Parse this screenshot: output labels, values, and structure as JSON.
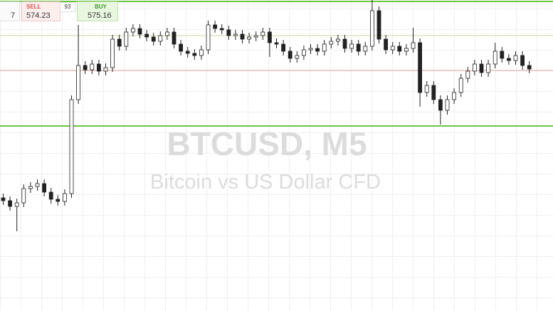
{
  "chart_data": {
    "type": "candlestick",
    "title": "BTCUSD, M5",
    "subtitle": "Bitcoin vs US Dollar CFD",
    "ylim": [
      560.52,
      578
    ],
    "up_color": "#ffffff",
    "down_color": "#222222",
    "edge_color": "#222222",
    "levels": [
      {
        "value": 577.92,
        "color": "#6cc644"
      },
      {
        "value": 576.0,
        "color": "#c9d79c"
      },
      {
        "value": 574.04,
        "color": "#e3a3a3"
      },
      {
        "value": 570.92,
        "color": "#6cc644"
      }
    ],
    "open": [
      566.88,
      566.72,
      566.4,
      566.6,
      567.4,
      567.52,
      567.68,
      567.2,
      566.8,
      566.68,
      567.12,
      572.4,
      574.32,
      574.08,
      574.4,
      574.0,
      574.2,
      575.8,
      575.4,
      576.2,
      576.4,
      576.08,
      575.92,
      575.68,
      576.0,
      576.2,
      575.52,
      575.12,
      575.0,
      574.88,
      575.2,
      576.6,
      576.4,
      576.32,
      576.0,
      576.08,
      575.8,
      575.92,
      576.0,
      576.2,
      575.6,
      575.52,
      575.12,
      574.72,
      574.88,
      575.2,
      575.28,
      575.12,
      575.52,
      575.68,
      575.8,
      575.28,
      575.52,
      575.12,
      575.4,
      577.4,
      575.8,
      575.2,
      575.4,
      575.12,
      575.28,
      575.6,
      572.8,
      573.2,
      572.4,
      571.8,
      572.4,
      572.8,
      573.6,
      574.0,
      574.4,
      573.92,
      574.4,
      575.12,
      574.72,
      574.6,
      574.88,
      574.32
    ],
    "high": [
      567.12,
      566.96,
      566.84,
      567.64,
      567.76,
      567.92,
      567.92,
      567.44,
      567.04,
      567.36,
      572.64,
      576.6,
      574.56,
      574.64,
      574.64,
      574.44,
      576.04,
      576.04,
      576.44,
      576.64,
      576.64,
      576.32,
      576.16,
      576.24,
      576.44,
      576.44,
      575.76,
      575.36,
      575.24,
      575.44,
      576.84,
      576.84,
      576.64,
      576.56,
      576.32,
      576.32,
      576.16,
      576.24,
      576.44,
      576.44,
      575.84,
      575.76,
      575.36,
      575.12,
      575.44,
      575.52,
      575.52,
      575.76,
      575.92,
      576.04,
      576.04,
      575.76,
      575.76,
      575.64,
      578.0,
      577.64,
      576.04,
      575.64,
      575.64,
      575.52,
      576.44,
      575.84,
      573.44,
      573.44,
      572.64,
      572.64,
      573.04,
      573.84,
      574.24,
      574.64,
      574.64,
      574.64,
      575.6,
      575.36,
      574.96,
      575.12,
      575.12,
      574.56
    ],
    "low": [
      566.48,
      566.16,
      565.0,
      566.36,
      567.16,
      567.28,
      566.96,
      566.56,
      566.44,
      566.44,
      566.88,
      572.16,
      573.84,
      573.84,
      573.76,
      573.76,
      573.96,
      575.16,
      575.16,
      575.96,
      575.84,
      575.68,
      575.44,
      575.44,
      575.76,
      575.28,
      574.88,
      574.76,
      574.64,
      574.64,
      574.96,
      576.16,
      576.08,
      575.76,
      575.76,
      575.56,
      575.56,
      575.68,
      575.76,
      574.8,
      575.28,
      574.88,
      574.48,
      574.48,
      574.64,
      574.96,
      574.88,
      574.88,
      575.28,
      575.44,
      575.04,
      575.04,
      574.88,
      574.88,
      575.16,
      575.56,
      574.96,
      574.96,
      574.88,
      574.88,
      575.04,
      572.0,
      572.56,
      572.16,
      571.0,
      571.56,
      572.16,
      572.56,
      573.36,
      573.76,
      573.68,
      573.68,
      574.16,
      574.48,
      574.36,
      574.36,
      574.08,
      573.88
    ],
    "close": [
      566.72,
      566.4,
      566.6,
      567.4,
      567.52,
      567.68,
      567.2,
      566.8,
      566.68,
      567.12,
      572.4,
      574.32,
      574.08,
      574.4,
      574.0,
      574.2,
      575.8,
      575.4,
      576.2,
      576.4,
      576.08,
      575.92,
      575.68,
      576.0,
      576.2,
      575.52,
      575.12,
      575.0,
      574.88,
      575.2,
      576.6,
      576.4,
      576.32,
      576.0,
      576.08,
      575.8,
      575.92,
      576.0,
      576.2,
      575.6,
      575.52,
      575.12,
      574.72,
      574.88,
      575.2,
      575.28,
      575.12,
      575.52,
      575.68,
      575.8,
      575.28,
      575.52,
      575.12,
      575.4,
      577.4,
      575.8,
      575.2,
      575.4,
      575.12,
      575.28,
      575.6,
      572.8,
      573.2,
      572.4,
      571.8,
      572.4,
      572.8,
      573.6,
      574.0,
      574.4,
      573.92,
      574.4,
      575.12,
      574.72,
      574.6,
      574.88,
      574.32,
      574.12
    ]
  },
  "widget": {
    "lot": "7",
    "sell_label": "SELL",
    "sell_price": "574.23",
    "spread": "93",
    "buy_label": "BUY",
    "buy_price": "575.16"
  }
}
